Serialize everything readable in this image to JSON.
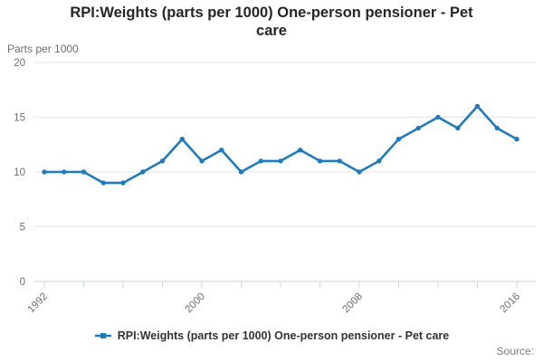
{
  "title": {
    "line1": "RPI:Weights (parts per 1000) One-person pensioner - Pet",
    "line2": "care"
  },
  "y_axis": {
    "unit_label": "Parts per 1000",
    "ticks": [
      0,
      5,
      10,
      15,
      20
    ],
    "max": 20
  },
  "x_axis": {
    "tick_years": [
      1992,
      1994,
      1996,
      1998,
      2000,
      2002,
      2004,
      2006,
      2008,
      2010,
      2012,
      2014,
      2016
    ],
    "label_years": [
      1992,
      2000,
      2008,
      2016
    ]
  },
  "legend": {
    "label": "RPI:Weights (parts per 1000) One-person pensioner - Pet care"
  },
  "source": {
    "label": "Source:"
  },
  "colors": {
    "line": "#1d7cc0",
    "grid": "#e6e6e6",
    "axis": "#c9d4e6",
    "text_muted": "#6e6e6e"
  },
  "chart_data": {
    "type": "line",
    "title": "RPI:Weights (parts per 1000) One-person pensioner - Pet care",
    "xlabel": "",
    "ylabel": "Parts per 1000",
    "ylim": [
      0,
      20
    ],
    "grid": true,
    "legend_position": "bottom",
    "x": [
      1992,
      1993,
      1994,
      1995,
      1996,
      1997,
      1998,
      1999,
      2000,
      2001,
      2002,
      2003,
      2004,
      2005,
      2006,
      2007,
      2008,
      2009,
      2010,
      2011,
      2012,
      2013,
      2014,
      2015,
      2016
    ],
    "series": [
      {
        "name": "RPI:Weights (parts per 1000) One-person pensioner - Pet care",
        "values": [
          10,
          10,
          10,
          9,
          9,
          10,
          11,
          13,
          11,
          12,
          10,
          11,
          11,
          12,
          11,
          11,
          10,
          11,
          13,
          14,
          15,
          14,
          16,
          14,
          13
        ]
      }
    ]
  }
}
